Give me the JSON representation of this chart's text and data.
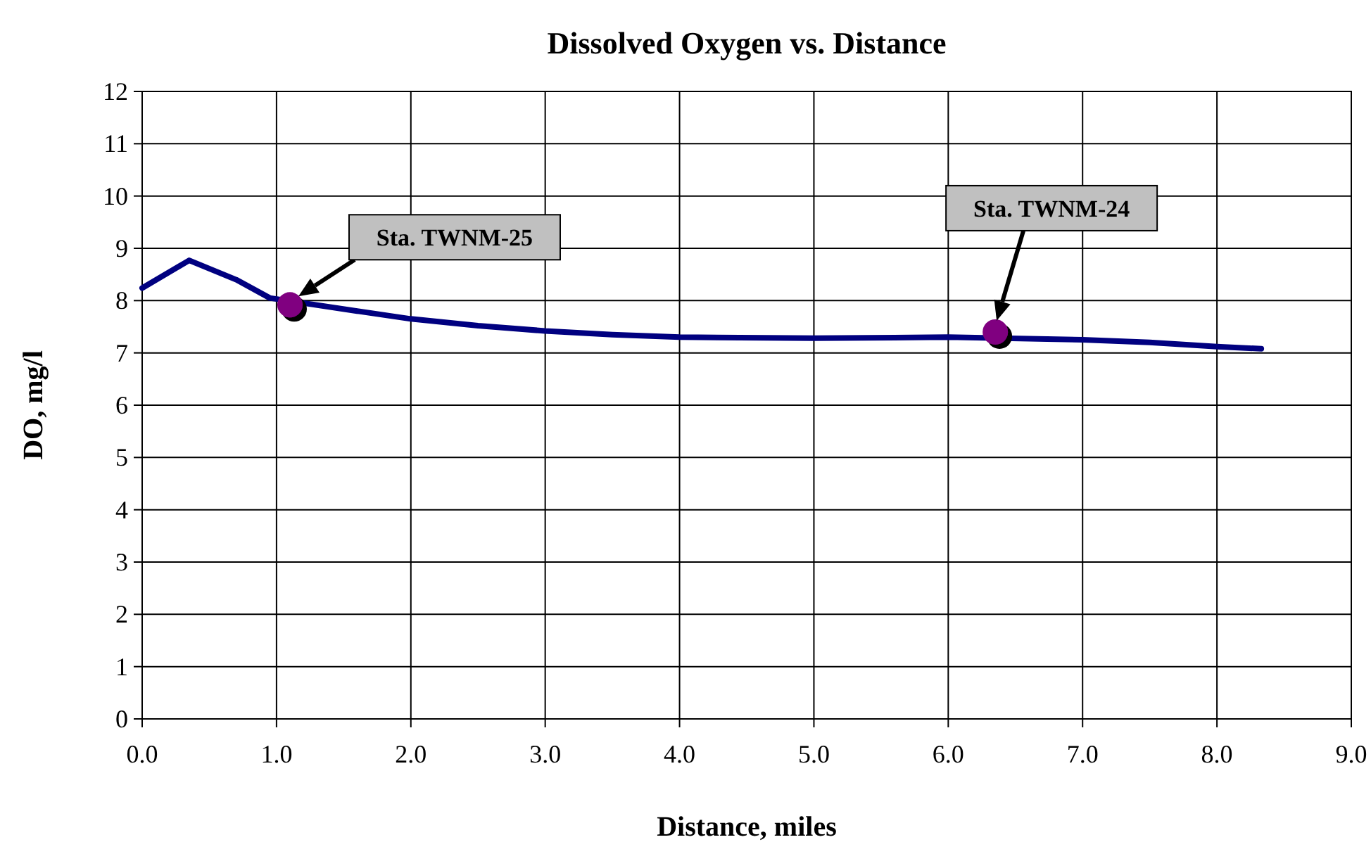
{
  "chart_data": {
    "type": "line",
    "title": "Dissolved Oxygen vs. Distance",
    "xlabel": "Distance, miles",
    "ylabel": "DO, mg/l",
    "xlim": [
      0,
      9
    ],
    "xticks": [
      {
        "value": 0,
        "label": "0.0"
      },
      {
        "value": 1,
        "label": "1.0"
      },
      {
        "value": 2,
        "label": "2.0"
      },
      {
        "value": 3,
        "label": "3.0"
      },
      {
        "value": 4,
        "label": "4.0"
      },
      {
        "value": 5,
        "label": "5.0"
      },
      {
        "value": 6,
        "label": "6.0"
      },
      {
        "value": 7,
        "label": "7.0"
      },
      {
        "value": 8,
        "label": "8.0"
      },
      {
        "value": 9,
        "label": "9.0"
      }
    ],
    "ylim": [
      0,
      12
    ],
    "yticks": [
      0,
      1,
      2,
      3,
      4,
      5,
      6,
      7,
      8,
      9,
      10,
      11,
      12
    ],
    "grid": true,
    "series": [
      {
        "color": "#000080",
        "marker": "none",
        "line_style": "solid",
        "x": [
          0,
          0.35,
          0.7,
          0.95,
          1.6,
          2,
          2.5,
          3,
          3.5,
          4,
          5,
          6,
          7,
          7.5,
          8,
          8.33
        ],
        "values": [
          8.24,
          8.77,
          8.4,
          8.05,
          7.8,
          7.65,
          7.52,
          7.42,
          7.35,
          7.3,
          7.28,
          7.3,
          7.25,
          7.2,
          7.12,
          7.08
        ]
      },
      {
        "type": "scatter",
        "color": "#800080",
        "marker": "circle",
        "x": [
          1.1,
          6.35
        ],
        "values": [
          7.92,
          7.4
        ]
      }
    ],
    "annotations": [
      "Sta. TWNM-25",
      "Sta. TWNM-24"
    ]
  }
}
